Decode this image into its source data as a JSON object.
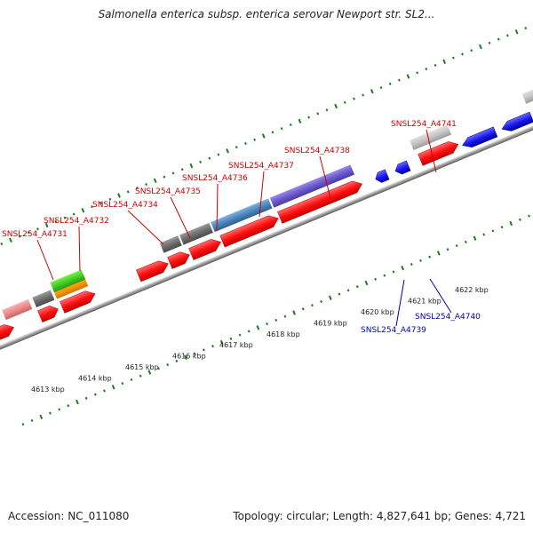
{
  "title": "Salmonella enterica subsp. enterica serovar Newport str. SL2...",
  "accession": "Accession: NC_011080",
  "topology": "Topology: circular; Length: 4,827,641 bp; Genes: 4,721",
  "colors": {
    "forward_gene": "#ff1010",
    "reverse_gene": "#1a1aee",
    "forward_label": "#cc0000",
    "reverse_label": "#0000bb",
    "backbone": "#7f7f7f",
    "tick": "#1f7a1f",
    "kbp_label": "#222222"
  },
  "kbp_labels": [
    "4613 kbp",
    "4614 kbp",
    "4615 kbp",
    "4616 kbp",
    "4617 kbp",
    "4618 kbp",
    "4619 kbp",
    "4620 kbp",
    "4621 kbp",
    "4622 kbp"
  ],
  "forward_gene_labels": [
    "SNSL254_A4731",
    "SNSL254_A4732",
    "SNSL254_A4734",
    "SNSL254_A4735",
    "SNSL254_A4736",
    "SNSL254_A4737",
    "SNSL254_A4738",
    "SNSL254_A4741"
  ],
  "reverse_gene_labels": [
    "SNSL254_A4739",
    "SNSL254_A4740"
  ]
}
